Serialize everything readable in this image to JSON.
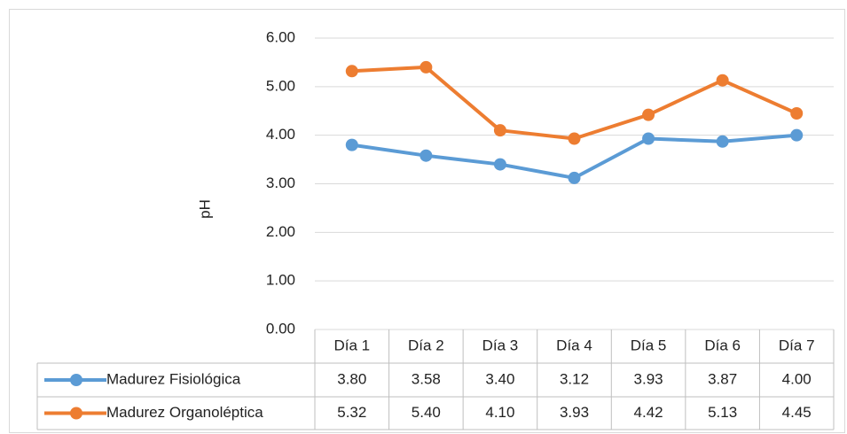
{
  "chart_data": {
    "type": "line",
    "y_label": "pH",
    "categories": [
      "Día 1",
      "Día 2",
      "Día 3",
      "Día 4",
      "Día 5",
      "Día 6",
      "Día 7"
    ],
    "series": [
      {
        "name": "Madurez Fisiológica",
        "color": "#5b9bd5",
        "values": [
          3.8,
          3.58,
          3.4,
          3.12,
          3.93,
          3.87,
          4.0
        ],
        "value_labels": [
          "3.80",
          "3.58",
          "3.40",
          "3.12",
          "3.93",
          "3.87",
          "4.00"
        ]
      },
      {
        "name": "Madurez Organoléptica",
        "color": "#ed7d31",
        "values": [
          5.32,
          5.4,
          4.1,
          3.93,
          4.42,
          5.13,
          4.45
        ],
        "value_labels": [
          "5.32",
          "5.40",
          "4.10",
          "3.93",
          "4.42",
          "5.13",
          "4.45"
        ]
      }
    ],
    "ylim": [
      0,
      6
    ],
    "yticks": [
      {
        "value": 0,
        "label": "0.00"
      },
      {
        "value": 1,
        "label": "1.00"
      },
      {
        "value": 2,
        "label": "2.00"
      },
      {
        "value": 3,
        "label": "3.00"
      },
      {
        "value": 4,
        "label": "4.00"
      },
      {
        "value": 5,
        "label": "5.00"
      },
      {
        "value": 6,
        "label": "6.00"
      }
    ],
    "grid": true
  }
}
